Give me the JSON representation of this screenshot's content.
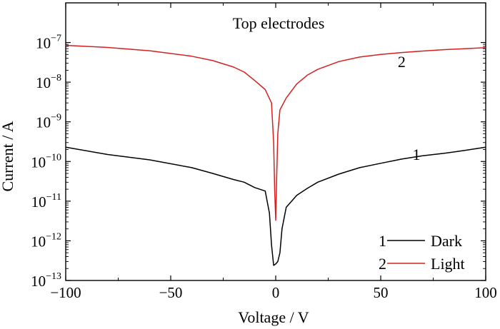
{
  "chart_data": {
    "type": "line",
    "title": "",
    "annotation": "Top electrodes",
    "xlabel": "Voltage / V",
    "ylabel": "Current / A",
    "xlim": [
      -100,
      100
    ],
    "ylim": [
      1e-13,
      1e-06
    ],
    "yscale": "log",
    "grid": false,
    "legend_position": "bottom-right",
    "x_ticks": [
      {
        "value": -100,
        "label": "−100"
      },
      {
        "value": -50,
        "label": "−50"
      },
      {
        "value": 0,
        "label": "0"
      },
      {
        "value": 50,
        "label": "50"
      },
      {
        "value": 100,
        "label": "100"
      }
    ],
    "y_ticks": [
      {
        "exp": -13,
        "base": "10",
        "sup": "−13"
      },
      {
        "exp": -12,
        "base": "10",
        "sup": "−12"
      },
      {
        "exp": -11,
        "base": "10",
        "sup": "−11"
      },
      {
        "exp": -10,
        "base": "10",
        "sup": "−10"
      },
      {
        "exp": -9,
        "base": "10",
        "sup": "−9"
      },
      {
        "exp": -8,
        "base": "10",
        "sup": "−8"
      },
      {
        "exp": -7,
        "base": "10",
        "sup": "−7"
      }
    ],
    "series": [
      {
        "name": "Dark",
        "number": "1",
        "color": "#000000",
        "x": [
          -100,
          -80,
          -60,
          -40,
          -30,
          -20,
          -15,
          -10,
          -5,
          -3,
          -2,
          -1,
          0,
          1,
          2,
          3,
          5,
          10,
          15,
          20,
          30,
          40,
          50,
          60,
          70,
          80,
          90,
          100
        ],
        "y": [
          2.3e-10,
          1.5e-10,
          1.1e-10,
          7e-11,
          5e-11,
          3.5e-11,
          3e-11,
          2.2e-11,
          1.8e-11,
          5e-12,
          8e-13,
          2.4e-13,
          2.6e-13,
          3e-13,
          5e-13,
          2e-12,
          7e-12,
          1.4e-11,
          2.1e-11,
          3e-11,
          4.8e-11,
          7e-11,
          9e-11,
          1.15e-10,
          1.4e-10,
          1.6e-10,
          1.9e-10,
          2.3e-10
        ]
      },
      {
        "name": "Light",
        "number": "2",
        "color": "#d42020",
        "x": [
          -100,
          -80,
          -60,
          -40,
          -30,
          -20,
          -15,
          -10,
          -5,
          -2,
          -1,
          -0.5,
          0,
          0.5,
          1,
          2,
          5,
          10,
          15,
          20,
          30,
          40,
          50,
          60,
          70,
          80,
          90,
          100
        ],
        "y": [
          8.5e-08,
          7.5e-08,
          6.2e-08,
          4.5e-08,
          3.5e-08,
          2.4e-08,
          1.8e-08,
          1.1e-08,
          6.5e-09,
          3e-09,
          3e-10,
          2e-11,
          3.3e-12,
          5e-11,
          5e-10,
          2e-09,
          4e-09,
          9e-09,
          1.5e-08,
          2.1e-08,
          3.3e-08,
          4.3e-08,
          5e-08,
          5.6e-08,
          6.1e-08,
          6.6e-08,
          7e-08,
          7.4e-08
        ]
      }
    ],
    "curve_labels": [
      {
        "text": "1",
        "x": 67,
        "y": 1.1e-10
      },
      {
        "text": "2",
        "x": 60,
        "y": 2.4e-08
      }
    ]
  }
}
